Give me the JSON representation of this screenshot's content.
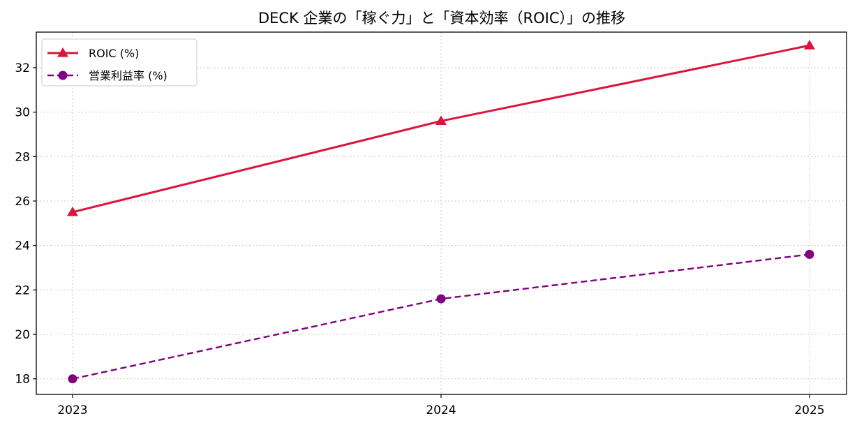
{
  "chart_data": {
    "type": "line",
    "title": "DECK 企業の「稼ぐ力」と「資本効率（ROIC）」の推移",
    "xlabel": "",
    "ylabel": "",
    "categories": [
      "2023",
      "2024",
      "2025"
    ],
    "y_ticks": [
      18,
      20,
      22,
      24,
      26,
      28,
      30,
      32
    ],
    "ylim": [
      17.3,
      33.6
    ],
    "grid": true,
    "legend_position": "top-left",
    "series": [
      {
        "name": "ROIC (%)",
        "values": [
          25.5,
          29.6,
          33.0
        ],
        "color": "#dc143c",
        "marker": "triangle",
        "line_style": "solid"
      },
      {
        "name": "営業利益率 (%)",
        "values": [
          18.0,
          21.6,
          23.6
        ],
        "color": "#800080",
        "marker": "circle",
        "line_style": "dashed"
      }
    ]
  }
}
